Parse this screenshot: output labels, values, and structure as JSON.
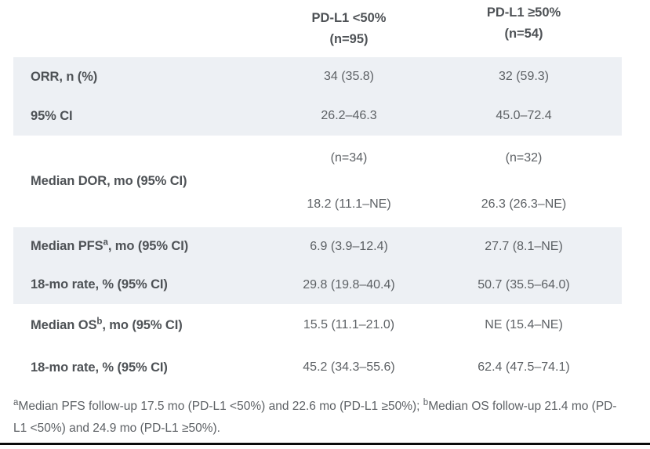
{
  "colors": {
    "background": "#ffffff",
    "shaded_band": "#edf0f4",
    "label_text": "#4e5256",
    "value_text": "#5d6165",
    "bottom_rule": "#0b0b0b"
  },
  "header": {
    "col1": {
      "line1": "PD-L1 <50%",
      "line2": "(n=95)"
    },
    "col2": {
      "line1": "PD-L1 ≥50%",
      "line2": "(n=54)"
    }
  },
  "rows": {
    "orr": {
      "label": "ORR, n (%)",
      "v1": "34 (35.8)",
      "v2": "32 (59.3)"
    },
    "ci": {
      "label": "95% CI",
      "v1": "26.2–46.3",
      "v2": "45.0–72.4"
    },
    "dor": {
      "label": "Median DOR, mo (95% CI)",
      "n1": "(n=34)",
      "n2": "(n=32)",
      "v1": "18.2 (11.1–NE)",
      "v2": "26.3 (26.3–NE)"
    },
    "pfs": {
      "label_prefix": "Median PFS",
      "sup": "a",
      "label_suffix": ", mo (95% CI)",
      "v1": "6.9 (3.9–12.4)",
      "v2": "27.7 (8.1–NE)"
    },
    "pfs_rate": {
      "label": "18-mo rate, % (95% CI)",
      "v1": "29.8 (19.8–40.4)",
      "v2": "50.7 (35.5–64.0)"
    },
    "os": {
      "label_prefix": "Median OS",
      "sup": "b",
      "label_suffix": ", mo (95% CI)",
      "v1": "15.5 (11.1–21.0)",
      "v2": "NE (15.4–NE)"
    },
    "os_rate": {
      "label": "18-mo rate, % (95% CI)",
      "v1": "45.2 (34.3–55.6)",
      "v2": "62.4 (47.5–74.1)"
    }
  },
  "footnote": {
    "sup_a": "a",
    "text_a": "Median PFS follow-up 17.5 mo (PD-L1 <50%) and 22.6 mo (PD-L1 ≥50%); ",
    "sup_b": "b",
    "text_b": "Median OS follow-up 21.4 mo (PD-L1 <50%) and 24.9 mo (PD-L1 ≥50%)."
  }
}
